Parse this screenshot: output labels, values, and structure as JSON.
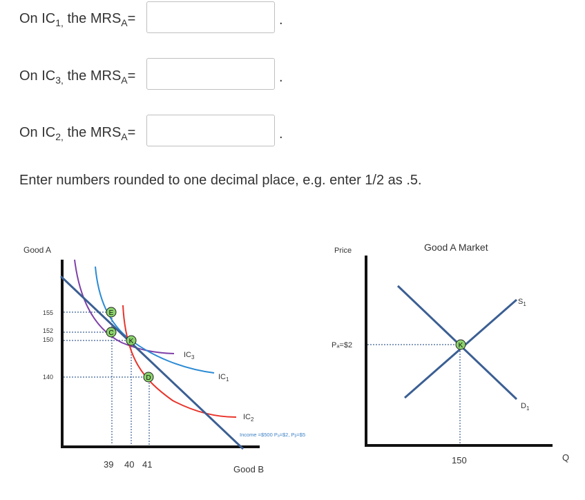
{
  "questions": [
    {
      "prefix": "On IC",
      "ic_sub": "1,",
      "mid": " the MRS",
      "mrs_sub": "A",
      "suffix": "=",
      "value": "",
      "end": "."
    },
    {
      "prefix": "On IC",
      "ic_sub": "3,",
      "mid": " the MRS",
      "mrs_sub": "A",
      "suffix": "=",
      "value": "",
      "end": "."
    },
    {
      "prefix": "On IC",
      "ic_sub": "2,",
      "mid": " the MRS",
      "mrs_sub": "A",
      "suffix": "=",
      "value": "",
      "end": "."
    }
  ],
  "instruction": "Enter numbers rounded to one decimal place, e.g. enter 1/2 as .5.",
  "chart_data": [
    {
      "type": "line",
      "ylabel": "Good A",
      "xlabel": "Good B",
      "y_ticks": [
        "155",
        "152",
        "150",
        "140"
      ],
      "x_ticks": [
        "39",
        "40",
        "41"
      ],
      "points": [
        {
          "label": "E",
          "x": 39,
          "y": 155
        },
        {
          "label": "C",
          "x": 39,
          "y": 152
        },
        {
          "label": "K",
          "x": 40,
          "y": 150
        },
        {
          "label": "D",
          "x": 41,
          "y": 140
        }
      ],
      "series": [
        {
          "name": "IC3",
          "label_main": "IC",
          "label_sub": "3",
          "color": "#7e3fa8"
        },
        {
          "name": "IC1",
          "label_main": "IC",
          "label_sub": "1",
          "color": "#2a8ad4"
        },
        {
          "name": "IC2",
          "label_main": "IC",
          "label_sub": "2",
          "color": "#e8332a"
        }
      ],
      "budget_line_color": "#3b5f93",
      "annotation": "Income =$500 Pₐ=$2, Pᵦ=$5"
    },
    {
      "type": "line",
      "title": "Good A Market",
      "ylabel": "Price",
      "xlabel": "Q",
      "price_label": "Pₐ=$2",
      "quantity_label": "150",
      "equilibrium_label": "K",
      "series": [
        {
          "name": "S1",
          "label_main": "S",
          "label_sub": "1"
        },
        {
          "name": "D1",
          "label_main": "D",
          "label_sub": "1"
        }
      ],
      "curve_color": "#3b5f93"
    }
  ]
}
